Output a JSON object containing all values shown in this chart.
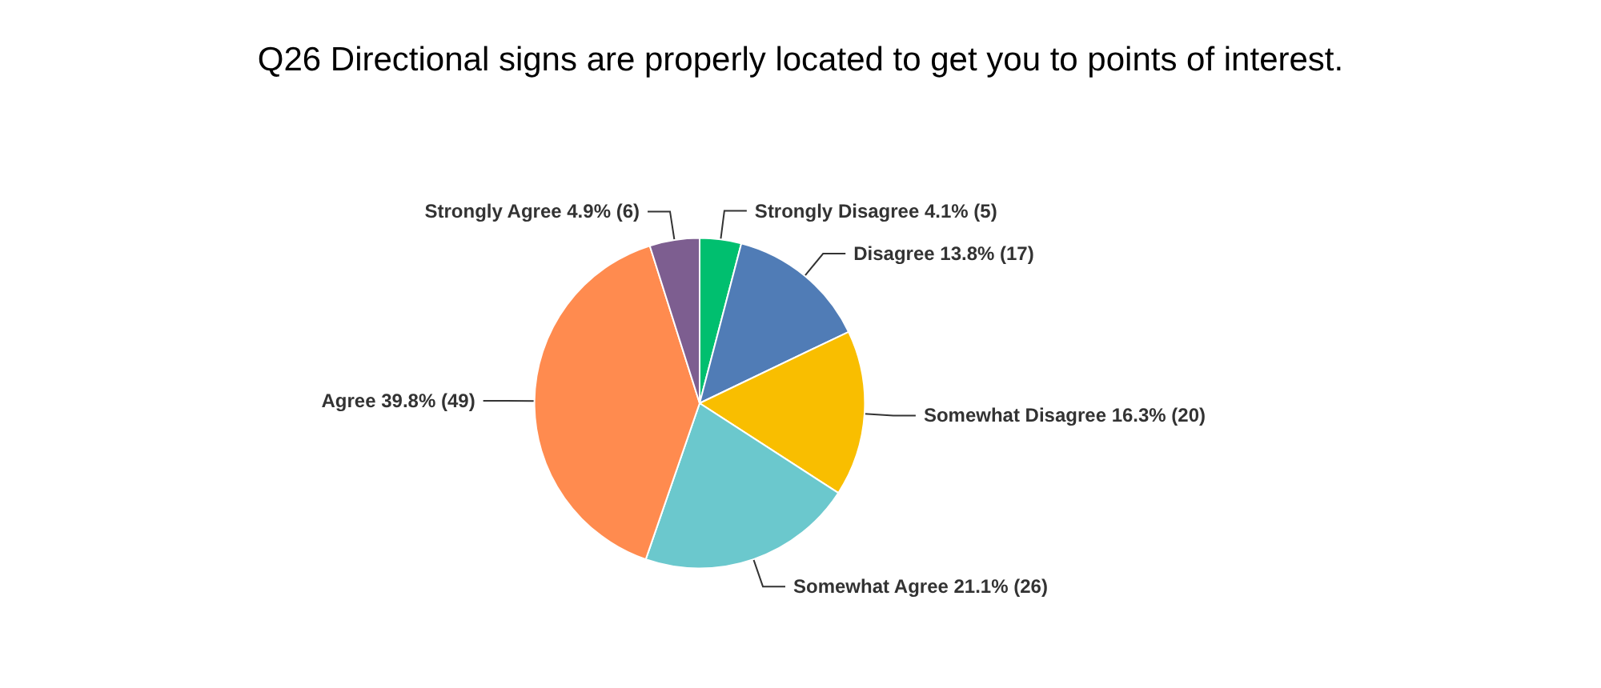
{
  "chart_data": {
    "type": "pie",
    "title": "Q26 Directional signs are properly located to get you to points of interest.",
    "categories": [
      "Strongly Disagree",
      "Disagree",
      "Somewhat Disagree",
      "Somewhat Agree",
      "Agree",
      "Strongly Agree"
    ],
    "values": [
      5,
      17,
      20,
      26,
      49,
      6
    ],
    "value_labels": [
      "4.1% (5)",
      "13.8% (17)",
      "16.3% (20)",
      "21.1% (26)",
      "39.8% (49)",
      "4.9% (6)"
    ],
    "colors": [
      "#00bf6f",
      "#507cb6",
      "#f9be00",
      "#6bc8cd",
      "#ff8b4f",
      "#7d5e90"
    ],
    "legend": false
  }
}
